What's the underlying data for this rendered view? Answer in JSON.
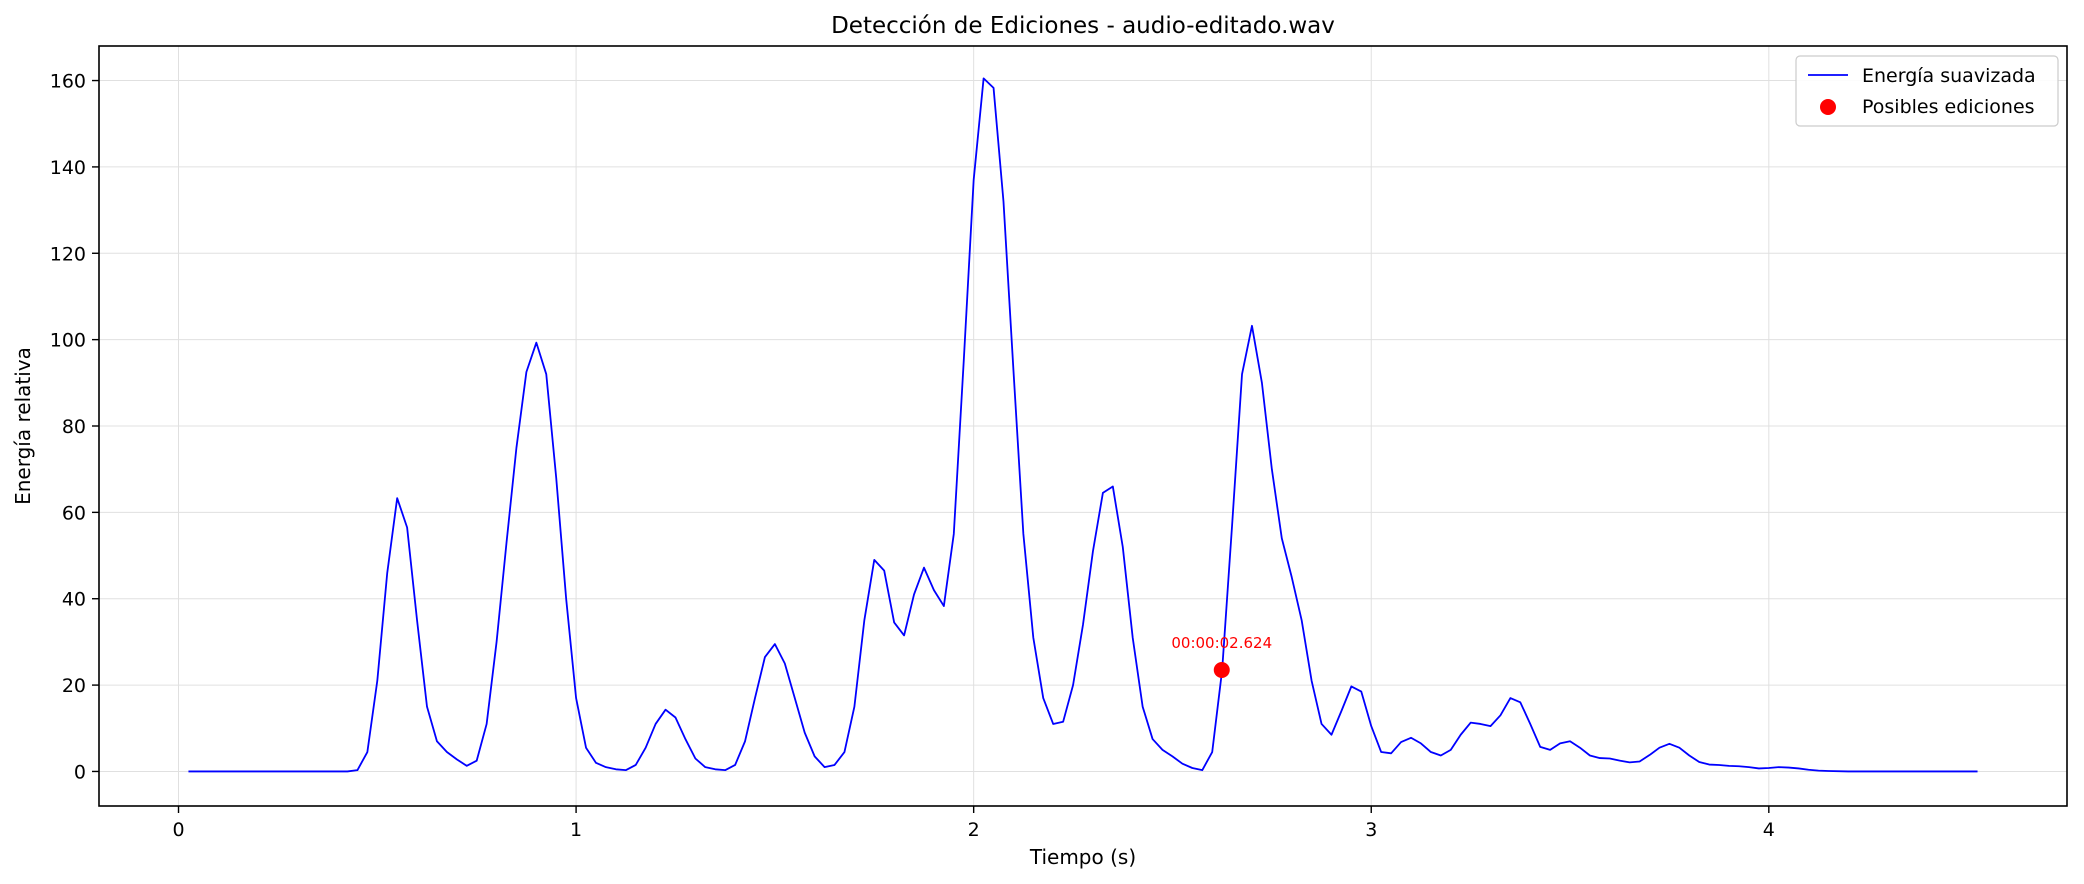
{
  "chart_data": {
    "type": "line",
    "title": "Detección de Ediciones - audio-editado.wav",
    "xlabel": "Tiempo (s)",
    "ylabel": "Energía relativa",
    "xlim": [
      -0.2,
      4.75
    ],
    "ylim": [
      -8,
      168
    ],
    "xticks": [
      0,
      1,
      2,
      3,
      4
    ],
    "yticks": [
      0,
      20,
      40,
      60,
      80,
      100,
      120,
      140,
      160
    ],
    "grid": true,
    "legend_position": "top-right",
    "series": [
      {
        "name": "Energía suavizada",
        "color": "#0000ff",
        "x": [
          0.025,
          0.05,
          0.075,
          0.1,
          0.125,
          0.15,
          0.175,
          0.2,
          0.225,
          0.25,
          0.275,
          0.3,
          0.325,
          0.35,
          0.375,
          0.4,
          0.425,
          0.45,
          0.475,
          0.5,
          0.525,
          0.55,
          0.575,
          0.6,
          0.625,
          0.65,
          0.675,
          0.7,
          0.725,
          0.75,
          0.775,
          0.8,
          0.825,
          0.85,
          0.875,
          0.9,
          0.925,
          0.95,
          0.975,
          1.0,
          1.025,
          1.05,
          1.075,
          1.1,
          1.125,
          1.15,
          1.175,
          1.2,
          1.225,
          1.25,
          1.275,
          1.3,
          1.325,
          1.35,
          1.375,
          1.4,
          1.425,
          1.45,
          1.475,
          1.5,
          1.525,
          1.55,
          1.575,
          1.6,
          1.625,
          1.65,
          1.675,
          1.7,
          1.725,
          1.75,
          1.775,
          1.8,
          1.825,
          1.85,
          1.875,
          1.9,
          1.925,
          1.95,
          1.975,
          2.0,
          2.025,
          2.05,
          2.075,
          2.1,
          2.125,
          2.15,
          2.175,
          2.2,
          2.225,
          2.25,
          2.275,
          2.3,
          2.325,
          2.35,
          2.375,
          2.4,
          2.425,
          2.45,
          2.475,
          2.5,
          2.525,
          2.55,
          2.575,
          2.6,
          2.625,
          2.65,
          2.675,
          2.7,
          2.725,
          2.75,
          2.775,
          2.8,
          2.825,
          2.85,
          2.875,
          2.9,
          2.925,
          2.95,
          2.975,
          3.0,
          3.025,
          3.05,
          3.075,
          3.1,
          3.125,
          3.15,
          3.175,
          3.2,
          3.225,
          3.25,
          3.275,
          3.3,
          3.325,
          3.35,
          3.375,
          3.4,
          3.425,
          3.45,
          3.475,
          3.5,
          3.525,
          3.55,
          3.575,
          3.6,
          3.625,
          3.65,
          3.675,
          3.7,
          3.725,
          3.75,
          3.775,
          3.8,
          3.825,
          3.85,
          3.875,
          3.9,
          3.925,
          3.95,
          3.975,
          4.0,
          4.025,
          4.05,
          4.075,
          4.1,
          4.125,
          4.15,
          4.2,
          4.3,
          4.4,
          4.5,
          4.525
        ],
        "values": [
          0,
          0,
          0,
          0,
          0,
          0,
          0,
          0,
          0,
          0,
          0,
          0,
          0,
          0,
          0,
          0,
          0,
          0.3,
          4.5,
          21,
          46,
          63.3,
          56.5,
          35,
          15,
          7,
          4.5,
          2.8,
          1.3,
          2.5,
          11,
          30,
          53,
          75,
          92.5,
          99.3,
          92,
          68,
          40,
          17,
          5.5,
          2,
          1,
          0.5,
          0.3,
          1.5,
          5.5,
          11,
          14.3,
          12.5,
          7.5,
          3,
          1,
          0.5,
          0.3,
          1.5,
          7,
          17,
          26.5,
          29.5,
          25,
          17,
          9,
          3.5,
          1,
          1.5,
          4.5,
          15,
          35,
          49,
          46.5,
          34.5,
          31.5,
          41,
          47.2,
          42,
          38.3,
          55,
          95,
          137,
          160.5,
          158.3,
          132,
          93,
          55,
          31,
          17,
          11,
          11.5,
          20,
          34,
          51,
          64.5,
          66,
          52,
          31,
          15,
          7.5,
          5,
          3.5,
          1.8,
          0.8,
          0.3,
          4.5,
          23.5,
          57,
          92,
          103.2,
          90,
          70,
          54,
          45,
          35,
          21,
          11,
          8.5,
          14,
          19.7,
          18.5,
          10.5,
          4.5,
          4.2,
          6.8,
          7.8,
          6.5,
          4.5,
          3.7,
          5,
          8.5,
          11.3,
          11,
          10.5,
          13,
          17,
          16,
          11,
          5.7,
          5,
          6.5,
          7,
          5.5,
          3.7,
          3.1,
          3,
          2.5,
          2.1,
          2.3,
          3.8,
          5.5,
          6.4,
          5.5,
          3.7,
          2.2,
          1.6,
          1.5,
          1.3,
          1.2,
          1,
          0.7,
          0.8,
          1,
          0.9,
          0.7,
          0.4,
          0.2,
          0.1,
          0,
          0,
          0,
          0,
          0
        ]
      },
      {
        "name": "Posibles ediciones",
        "color": "#ff0000",
        "marker": "circle",
        "x": [
          2.624
        ],
        "values": [
          23.5
        ]
      }
    ],
    "annotations": [
      {
        "text": "00:00:02.624",
        "x": 2.624,
        "y": 23.5
      }
    ]
  }
}
